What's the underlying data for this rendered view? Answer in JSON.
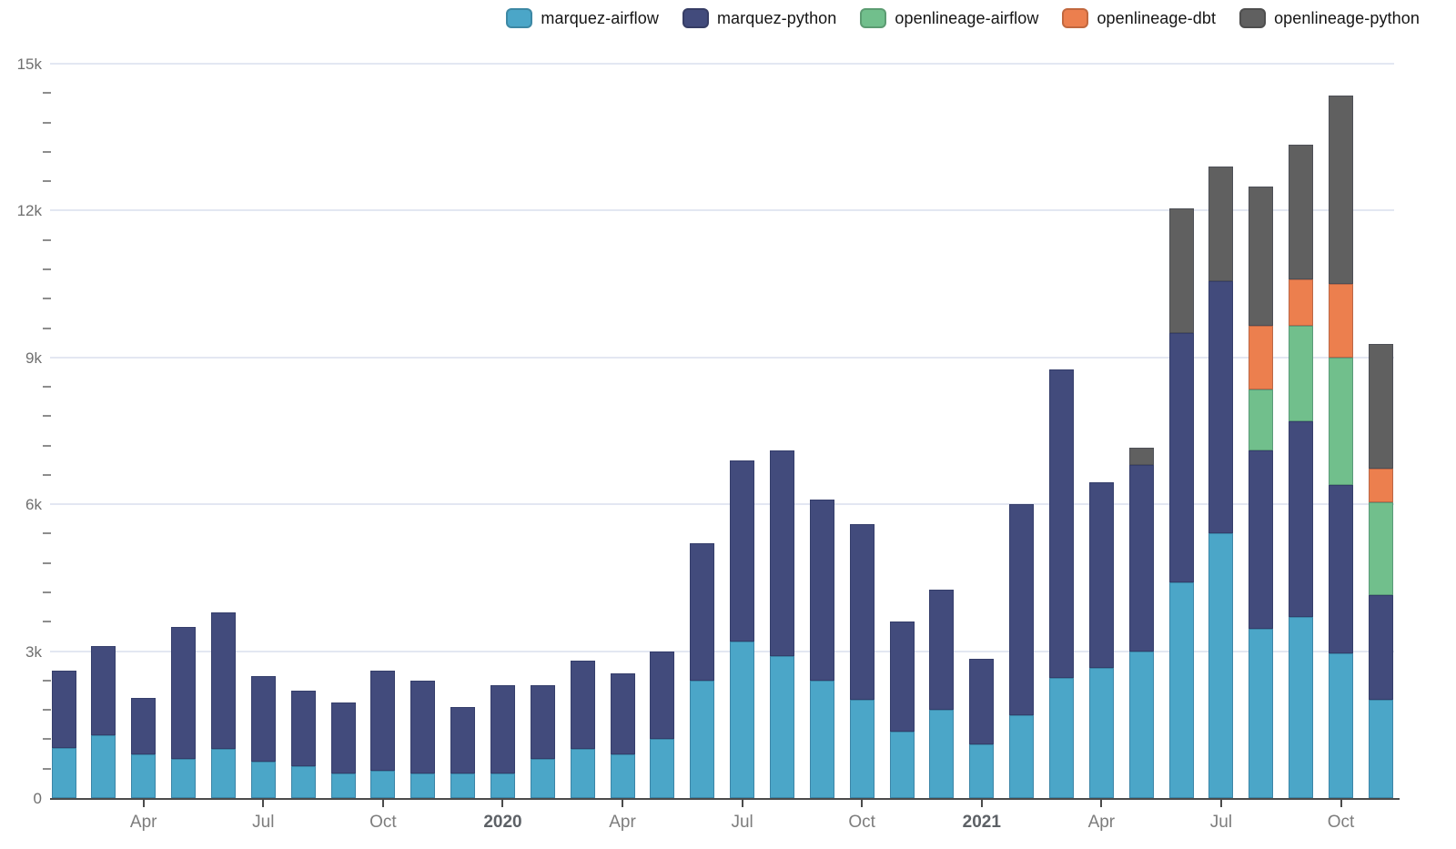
{
  "chart_data": {
    "type": "bar",
    "stacked": true,
    "title": "",
    "xlabel": "",
    "ylabel": "",
    "grid": "horizontal",
    "legend_position": "top",
    "ylim": [
      0,
      15000
    ],
    "y_ticks": [
      0,
      3000,
      6000,
      9000,
      12000,
      15000
    ],
    "y_tick_labels": [
      "0",
      "3k",
      "6k",
      "9k",
      "12k",
      "15k"
    ],
    "minor_tick_interval": 600,
    "categories": [
      "Feb 2019",
      "Mar 2019",
      "Apr 2019",
      "May 2019",
      "Jun 2019",
      "Jul 2019",
      "Aug 2019",
      "Sep 2019",
      "Oct 2019",
      "Nov 2019",
      "Dec 2019",
      "Jan 2020",
      "Feb 2020",
      "Mar 2020",
      "Apr 2020",
      "May 2020",
      "Jun 2020",
      "Jul 2020",
      "Aug 2020",
      "Sep 2020",
      "Oct 2020",
      "Nov 2020",
      "Dec 2020",
      "Jan 2021",
      "Feb 2021",
      "Mar 2021",
      "Apr 2021",
      "May 2021",
      "Jun 2021",
      "Jul 2021",
      "Aug 2021",
      "Sep 2021",
      "Oct 2021",
      "Nov 2021"
    ],
    "x_ticks": [
      {
        "index": 2,
        "label": "Apr",
        "bold": false
      },
      {
        "index": 5,
        "label": "Jul",
        "bold": false
      },
      {
        "index": 8,
        "label": "Oct",
        "bold": false
      },
      {
        "index": 11,
        "label": "2020",
        "bold": true
      },
      {
        "index": 14,
        "label": "Apr",
        "bold": false
      },
      {
        "index": 17,
        "label": "Jul",
        "bold": false
      },
      {
        "index": 20,
        "label": "Oct",
        "bold": false
      },
      {
        "index": 23,
        "label": "2021",
        "bold": true
      },
      {
        "index": 26,
        "label": "Apr",
        "bold": false
      },
      {
        "index": 29,
        "label": "Jul",
        "bold": false
      },
      {
        "index": 32,
        "label": "Oct",
        "bold": false
      }
    ],
    "series": [
      {
        "name": "marquez-airflow",
        "color": "#4ba6c8",
        "values": [
          1030,
          1280,
          900,
          800,
          1000,
          750,
          650,
          500,
          550,
          500,
          500,
          500,
          800,
          1000,
          900,
          1200,
          2400,
          3200,
          2900,
          2400,
          2000,
          1350,
          1800,
          1100,
          1700,
          2450,
          2650,
          3000,
          4400,
          5400,
          3450,
          3700,
          2950,
          2000
        ]
      },
      {
        "name": "marquez-python",
        "color": "#424b7c",
        "values": [
          1570,
          1820,
          1150,
          2700,
          2800,
          1750,
          1550,
          1450,
          2050,
          1900,
          1350,
          1800,
          1500,
          1800,
          1650,
          1800,
          2800,
          3700,
          4200,
          3700,
          3600,
          2250,
          2450,
          1750,
          4300,
          6300,
          3800,
          3800,
          5100,
          5150,
          3650,
          4000,
          3450,
          2150
        ]
      },
      {
        "name": "openlineage-airflow",
        "color": "#71bf8c",
        "values": [
          0,
          0,
          0,
          0,
          0,
          0,
          0,
          0,
          0,
          0,
          0,
          0,
          0,
          0,
          0,
          0,
          0,
          0,
          0,
          0,
          0,
          0,
          0,
          0,
          0,
          0,
          0,
          0,
          0,
          0,
          1250,
          1950,
          2600,
          1900
        ]
      },
      {
        "name": "openlineage-dbt",
        "color": "#ec7f4e",
        "values": [
          0,
          0,
          0,
          0,
          0,
          0,
          0,
          0,
          0,
          0,
          0,
          0,
          0,
          0,
          0,
          0,
          0,
          0,
          0,
          0,
          0,
          0,
          0,
          0,
          0,
          0,
          0,
          0,
          0,
          0,
          1300,
          950,
          1500,
          680
        ]
      },
      {
        "name": "openlineage-python",
        "color": "#606060",
        "values": [
          0,
          0,
          0,
          0,
          0,
          0,
          0,
          0,
          0,
          0,
          0,
          0,
          0,
          0,
          0,
          0,
          0,
          0,
          0,
          0,
          0,
          0,
          0,
          0,
          0,
          0,
          0,
          350,
          2550,
          2350,
          2850,
          2750,
          3850,
          2550
        ]
      }
    ]
  },
  "colors": {
    "gridline": "#e3e7f2",
    "axis_line": "#4b4b4b",
    "y_label_text": "#6f6f6f",
    "x_label_text": "#7d7d7d",
    "year_label_text": "#5d6166",
    "legend_text": "#151515",
    "background": "#ffffff"
  }
}
